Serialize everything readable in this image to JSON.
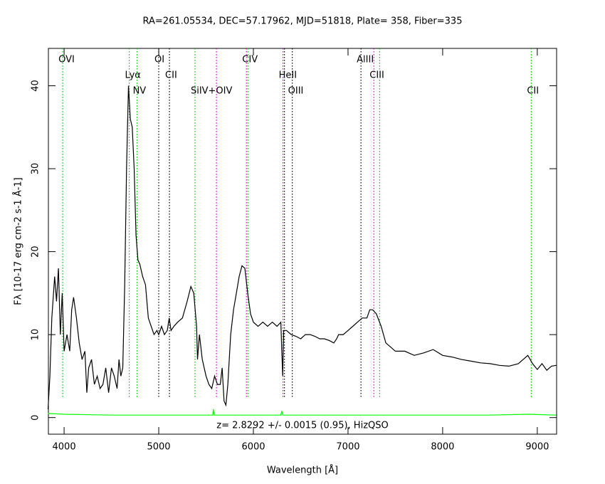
{
  "chart_data": {
    "type": "line",
    "title": "RA=261.05534, DEC=57.17962, MJD=51818, Plate= 358, Fiber=335",
    "xlabel": "Wavelength [Å]",
    "ylabel": "Fλ [10-17 erg cm-2 s-1 Å-1]",
    "annotation": "z= 2.8292 +/- 0.0015 (0.95), HizQSO",
    "xlim": [
      3834,
      9204
    ],
    "ylim": [
      -2,
      44.5
    ],
    "xticks": [
      4000,
      5000,
      6000,
      7000,
      8000,
      9000
    ],
    "yticks": [
      0,
      10,
      20,
      30,
      40
    ],
    "series": [
      {
        "color": "#000000",
        "x": [
          3830,
          3850,
          3870,
          3900,
          3920,
          3940,
          3960,
          3980,
          4000,
          4030,
          4060,
          4080,
          4100,
          4130,
          4160,
          4190,
          4220,
          4240,
          4260,
          4290,
          4320,
          4350,
          4380,
          4410,
          4440,
          4470,
          4500,
          4530,
          4560,
          4580,
          4600,
          4620,
          4640,
          4660,
          4680,
          4700,
          4720,
          4740,
          4760,
          4780,
          4800,
          4830,
          4860,
          4890,
          4920,
          4950,
          4980,
          5000,
          5030,
          5060,
          5090,
          5110,
          5130,
          5160,
          5200,
          5250,
          5300,
          5340,
          5370,
          5400,
          5410,
          5430,
          5460,
          5500,
          5530,
          5560,
          5590,
          5620,
          5650,
          5670,
          5690,
          5710,
          5730,
          5760,
          5790,
          5820,
          5850,
          5880,
          5910,
          5940,
          5970,
          6000,
          6050,
          6100,
          6150,
          6200,
          6250,
          6290,
          6300,
          6310,
          6320,
          6350,
          6400,
          6450,
          6500,
          6550,
          6600,
          6650,
          6700,
          6750,
          6800,
          6850,
          6880,
          6900,
          6950,
          7000,
          7050,
          7100,
          7150,
          7200,
          7230,
          7260,
          7300,
          7350,
          7400,
          7450,
          7500,
          7600,
          7700,
          7800,
          7900,
          8000,
          8100,
          8200,
          8300,
          8400,
          8500,
          8600,
          8700,
          8800,
          8900,
          8950,
          9000,
          9050,
          9100,
          9150,
          9200
        ],
        "values": [
          1,
          5,
          12,
          17,
          14,
          18,
          10,
          15,
          8,
          10,
          8,
          13,
          14.5,
          12,
          9,
          7,
          8,
          3,
          6,
          7,
          4,
          5,
          3.5,
          4,
          6,
          3,
          6,
          5,
          3.5,
          7,
          5,
          6,
          16,
          30,
          40,
          36,
          35,
          30,
          22,
          19,
          18.5,
          17,
          16,
          12,
          11,
          10,
          10.5,
          10,
          11,
          10,
          10.5,
          12,
          10.5,
          11,
          11.5,
          12,
          14,
          15.8,
          15,
          11,
          7,
          10,
          7,
          5,
          4,
          3.5,
          5,
          4,
          4,
          6,
          2,
          1.5,
          4,
          10,
          13,
          15,
          17,
          18.3,
          18,
          15,
          12.5,
          11.5,
          11,
          11.5,
          11,
          11.5,
          11,
          11.5,
          8,
          5,
          10.5,
          10.5,
          10,
          9.8,
          9.5,
          10,
          10,
          9.8,
          9.5,
          9.5,
          9.3,
          9,
          9.5,
          10,
          10,
          10.5,
          11,
          11.5,
          12,
          12,
          13,
          13,
          12.5,
          11,
          9,
          8.5,
          8,
          8,
          7.5,
          7.8,
          8.2,
          7.5,
          7.3,
          7,
          6.8,
          6.6,
          6.5,
          6.3,
          6.2,
          6.5,
          7.5,
          6.5,
          5.8,
          6.5,
          5.7,
          6.2,
          6.3
        ]
      },
      {
        "color": "#00ff00",
        "x": [
          3830,
          4000,
          4500,
          5000,
          5500,
          5570,
          5577,
          5585,
          5700,
          6000,
          6290,
          6300,
          6310,
          6500,
          7000,
          7500,
          8000,
          8500,
          8900,
          9200
        ],
        "values": [
          0.5,
          0.4,
          0.3,
          0.3,
          0.3,
          0.3,
          1.0,
          0.3,
          0.3,
          0.3,
          0.3,
          0.8,
          0.3,
          0.3,
          0.3,
          0.3,
          0.3,
          0.3,
          0.4,
          0.3
        ]
      }
    ],
    "lines": [
      {
        "label": "OVI",
        "wavelength": 3985,
        "color": "#00c800"
      },
      {
        "label": "Lyα",
        "wavelength": 4688,
        "color": "#00c800"
      },
      {
        "label": "NV",
        "wavelength": 4771,
        "color": "#00c800"
      },
      {
        "label": "OI",
        "wavelength": 5000,
        "color": "#000000"
      },
      {
        "label": "CII",
        "wavelength": 5113,
        "color": "#000000"
      },
      {
        "label": "SiIV+OIV",
        "wavelength": 5383,
        "color": "#00c800"
      },
      {
        "label": null,
        "wavelength": 5610,
        "color": "#d000d0"
      },
      {
        "label": "CIV",
        "wavelength": 5927,
        "color": "#d000d0"
      },
      {
        "label": null,
        "wavelength": 5942,
        "color": "#00c800"
      },
      {
        "label": "HeII",
        "wavelength": 6313,
        "color": "#d000d0"
      },
      {
        "label": null,
        "wavelength": 6328,
        "color": "#000000"
      },
      {
        "label": "OIII",
        "wavelength": 6411,
        "color": "#000000"
      },
      {
        "label": "AlIII",
        "wavelength": 7137,
        "color": "#000000"
      },
      {
        "label": "CIII",
        "wavelength": 7273,
        "color": "#d000d0"
      },
      {
        "label": null,
        "wavelength": 7334,
        "color": "#00c800"
      },
      {
        "label": "CII",
        "wavelength": 8936,
        "color": "#00c800"
      }
    ]
  }
}
